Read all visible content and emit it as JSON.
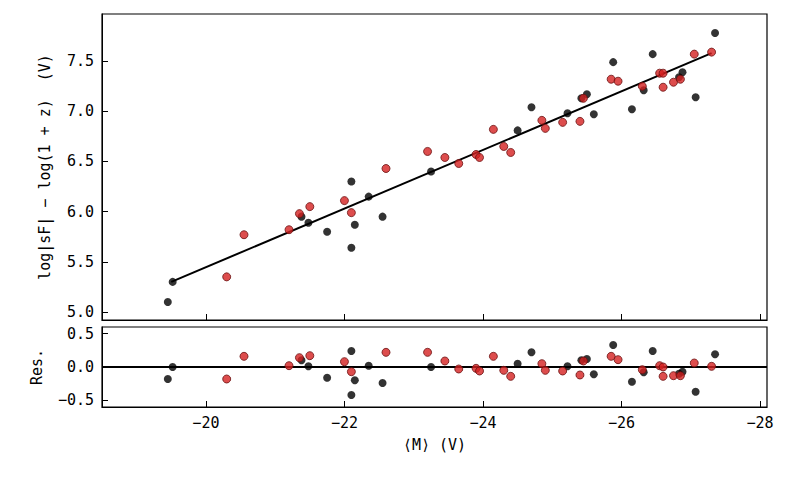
{
  "chart_data": [
    {
      "type": "scatter",
      "ylabel": "log|sF| − log(1 + z)  (V)",
      "xlim": [
        -18.5,
        -28.1
      ],
      "xticks": [
        {
          "value": -20,
          "label": "−20"
        },
        {
          "value": -22,
          "label": "−22"
        },
        {
          "value": -24,
          "label": "−24"
        },
        {
          "value": -26,
          "label": "−26"
        },
        {
          "value": -28,
          "label": "−28"
        }
      ],
      "ylim": [
        4.92,
        7.97
      ],
      "yticks": [
        {
          "value": 5,
          "label": "5.0"
        },
        {
          "value": 5.5,
          "label": "5.5"
        },
        {
          "value": 6,
          "label": "6.0"
        },
        {
          "value": 6.5,
          "label": "6.5"
        },
        {
          "value": 7,
          "label": "7.0"
        },
        {
          "value": 7.5,
          "label": "7.5"
        }
      ],
      "tick_labels": "y",
      "grid": false,
      "series": [
        {
          "type": "scatter",
          "marker": "circle",
          "color": "#000000",
          "x": [
            -19.45,
            -19.52,
            -21.38,
            -21.48,
            -21.75,
            -22.1,
            -22.1,
            -22.15,
            -22.35,
            -22.55,
            -23.25,
            -24.5,
            -24.7,
            -25.22,
            -25.42,
            -25.5,
            -25.6,
            -25.88,
            -26.15,
            -26.32,
            -26.45,
            -26.83,
            -26.88,
            -27.07,
            -27.35
          ],
          "values": [
            5.1,
            5.3,
            5.95,
            5.89,
            5.8,
            6.3,
            5.64,
            5.87,
            6.15,
            5.95,
            6.4,
            6.81,
            7.04,
            6.98,
            7.13,
            7.17,
            6.97,
            7.49,
            7.02,
            7.21,
            7.57,
            7.34,
            7.39,
            7.14,
            7.78
          ]
        },
        {
          "type": "scatter",
          "marker": "circle",
          "color": "#d42020",
          "x": [
            -20.3,
            -20.55,
            -21.2,
            -21.35,
            -21.5,
            -22.0,
            -22.1,
            -22.6,
            -23.2,
            -23.45,
            -23.65,
            -23.9,
            -23.95,
            -24.15,
            -24.3,
            -24.4,
            -24.85,
            -24.9,
            -25.15,
            -25.4,
            -25.45,
            -25.85,
            -25.95,
            -26.3,
            -26.55,
            -26.6,
            -26.6,
            -26.75,
            -26.85,
            -27.05,
            -27.3
          ],
          "values": [
            5.35,
            5.77,
            5.82,
            5.98,
            6.05,
            6.11,
            5.99,
            6.43,
            6.6,
            6.54,
            6.48,
            6.57,
            6.54,
            6.82,
            6.65,
            6.59,
            6.91,
            6.83,
            6.89,
            6.9,
            7.13,
            7.32,
            7.3,
            7.25,
            7.38,
            7.24,
            7.38,
            7.29,
            7.32,
            7.57,
            7.59
          ]
        },
        {
          "type": "line",
          "line_style": "solid",
          "color": "#000000",
          "x": [
            -19.5,
            -27.3
          ],
          "values": [
            5.3,
            7.58
          ]
        }
      ]
    },
    {
      "type": "scatter",
      "xlabel": "⟨M⟩ (V)",
      "ylabel": "Res.",
      "xlim": [
        -18.5,
        -28.1
      ],
      "xticks": [
        {
          "value": -20,
          "label": "−20"
        },
        {
          "value": -22,
          "label": "−22"
        },
        {
          "value": -24,
          "label": "−24"
        },
        {
          "value": -26,
          "label": "−26"
        },
        {
          "value": -28,
          "label": "−28"
        }
      ],
      "ylim": [
        -0.6,
        0.6
      ],
      "yticks": [
        {
          "value": -0.5,
          "label": "−0.5"
        },
        {
          "value": 0,
          "label": "0.0"
        },
        {
          "value": 0.5,
          "label": "0.5"
        }
      ],
      "grid": false,
      "series": [
        {
          "type": "scatter",
          "marker": "circle",
          "color": "#000000",
          "x": [
            -19.45,
            -19.52,
            -21.38,
            -21.48,
            -21.75,
            -22.1,
            -22.1,
            -22.15,
            -22.35,
            -22.55,
            -23.25,
            -24.5,
            -24.7,
            -25.22,
            -25.42,
            -25.5,
            -25.6,
            -25.88,
            -26.15,
            -26.32,
            -26.45,
            -26.83,
            -26.88,
            -27.07,
            -27.35
          ],
          "values": [
            -0.18,
            0.0,
            0.1,
            0.01,
            -0.16,
            0.24,
            -0.42,
            -0.2,
            0.02,
            -0.24,
            0.0,
            0.05,
            0.22,
            0.01,
            0.1,
            0.12,
            -0.11,
            0.33,
            -0.22,
            -0.08,
            0.24,
            -0.1,
            -0.07,
            -0.37,
            0.19
          ]
        },
        {
          "type": "scatter",
          "marker": "circle",
          "color": "#d42020",
          "x": [
            -20.3,
            -20.55,
            -21.2,
            -21.35,
            -21.5,
            -22.0,
            -22.1,
            -22.6,
            -23.2,
            -23.45,
            -23.65,
            -23.9,
            -23.95,
            -24.15,
            -24.3,
            -24.4,
            -24.85,
            -24.9,
            -25.15,
            -25.4,
            -25.45,
            -25.85,
            -25.95,
            -26.3,
            -26.55,
            -26.6,
            -26.6,
            -26.75,
            -26.85,
            -27.05,
            -27.3
          ],
          "values": [
            -0.18,
            0.16,
            0.02,
            0.14,
            0.17,
            0.08,
            -0.07,
            0.22,
            0.22,
            0.09,
            -0.03,
            -0.02,
            -0.06,
            0.16,
            -0.05,
            -0.14,
            0.05,
            -0.05,
            -0.06,
            -0.12,
            0.09,
            0.16,
            0.11,
            -0.04,
            0.02,
            -0.14,
            0.0,
            -0.13,
            -0.13,
            0.06,
            0.01
          ]
        },
        {
          "type": "line",
          "line_style": "solid",
          "color": "#000000",
          "x": [
            -18.5,
            -28.1
          ],
          "values": [
            0,
            0
          ]
        }
      ]
    }
  ]
}
